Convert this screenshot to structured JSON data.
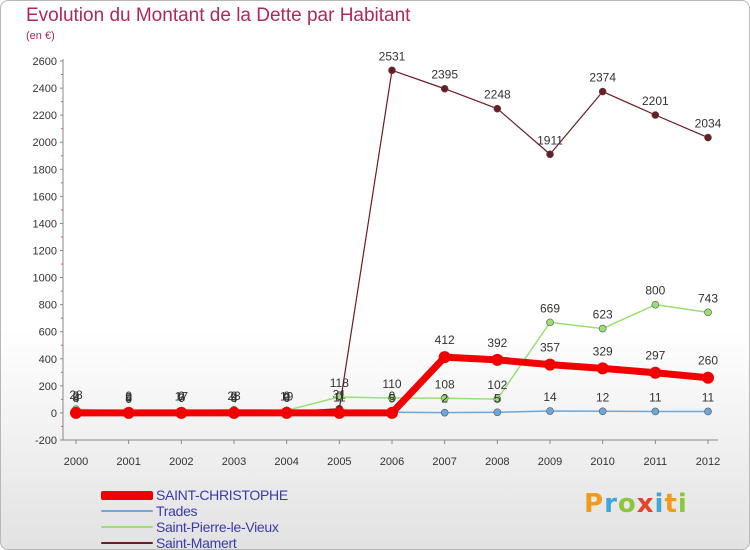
{
  "title": "Evolution du Montant de la Dette par Habitant",
  "subtitle": "(en €)",
  "logo": {
    "text": "Proxiti",
    "letters": [
      {
        "ch": "P",
        "color": "#f29a1e"
      },
      {
        "ch": "r",
        "color": "#3fa7d9"
      },
      {
        "ch": "o",
        "color": "#8cc63e"
      },
      {
        "ch": "x",
        "color": "#e8412c"
      },
      {
        "ch": "i",
        "color": "#3fa7d9"
      },
      {
        "ch": "t",
        "color": "#f29a1e"
      },
      {
        "ch": "i",
        "color": "#8cc63e"
      }
    ]
  },
  "chart_data": {
    "type": "line",
    "title": "Evolution du Montant de la Dette par Habitant",
    "subtitle": "(en €)",
    "x": [
      "2000",
      "2001",
      "2002",
      "2003",
      "2004",
      "2005",
      "2006",
      "2007",
      "2008",
      "2009",
      "2010",
      "2011",
      "2012"
    ],
    "ylim": [
      -200,
      2600
    ],
    "yticks": [
      -200,
      0,
      200,
      400,
      600,
      800,
      1000,
      1200,
      1400,
      1600,
      1800,
      2000,
      2200,
      2400,
      2600
    ],
    "grid": false,
    "legend_position": "bottom-left",
    "series": [
      {
        "name": "Saint-Mamert",
        "color": "#6b1c24",
        "width": 1.2,
        "values": [
          8,
          0,
          7,
          8,
          9,
          31,
          2531,
          2395,
          2248,
          1911,
          2374,
          2201,
          2034
        ],
        "labels": [
          "8",
          "0",
          "7",
          "8",
          "9",
          "31",
          "2531",
          "2395",
          "2248",
          "1911",
          "2374",
          "2201",
          "2034"
        ]
      },
      {
        "name": "Saint-Pierre-le-Vieux",
        "color": "#99e074",
        "width": 1.5,
        "values": [
          28,
          9,
          17,
          23,
          19,
          118,
          110,
          108,
          102,
          669,
          623,
          800,
          743
        ],
        "labels": [
          "28",
          "9",
          "17",
          "23",
          "19",
          "118",
          "110",
          "108",
          "102",
          "669",
          "623",
          "800",
          "743"
        ]
      },
      {
        "name": "Trades",
        "color": "#6da7d8",
        "width": 1.5,
        "values": [
          4,
          4,
          6,
          4,
          6,
          11,
          5,
          2,
          5,
          14,
          12,
          11,
          11
        ],
        "labels": [
          "4",
          "4",
          "6",
          "4",
          "6",
          "11",
          "5",
          "2",
          "5",
          "14",
          "12",
          "11",
          "11"
        ]
      },
      {
        "name": "SAINT-CHRISTOPHE",
        "color": "#f20000",
        "width": 7,
        "values": [
          0,
          0,
          0,
          0,
          0,
          0,
          0,
          412,
          392,
          357,
          329,
          297,
          260
        ],
        "labels": [
          "0",
          "0",
          "0",
          "0",
          "0",
          "0",
          "0",
          "412",
          "392",
          "357",
          "329",
          "297",
          "260"
        ]
      }
    ],
    "legend": [
      {
        "name": "SAINT-CHRISTOPHE",
        "color": "#f20000"
      },
      {
        "name": "Trades",
        "color": "#6da7d8"
      },
      {
        "name": "Saint-Pierre-le-Vieux",
        "color": "#99e074"
      },
      {
        "name": "Saint-Mamert",
        "color": "#6b1c24"
      }
    ]
  }
}
